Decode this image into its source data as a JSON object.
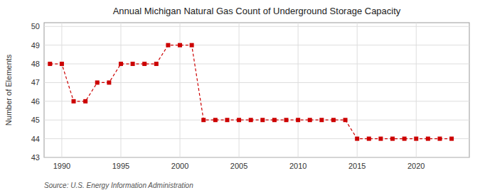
{
  "chart_data": {
    "type": "line",
    "title": "Annual Michigan Natural Gas Count of Underground Storage Capacity",
    "ylabel": "Number of Elements",
    "annotations": [
      "Source: U.S. Energy Information Administration"
    ],
    "x": [
      1989,
      1990,
      1991,
      1992,
      1993,
      1994,
      1995,
      1996,
      1997,
      1998,
      1999,
      2000,
      2001,
      2002,
      2003,
      2004,
      2005,
      2006,
      2007,
      2008,
      2009,
      2010,
      2011,
      2012,
      2013,
      2014,
      2015,
      2016,
      2017,
      2018,
      2019,
      2020,
      2021,
      2022,
      2023
    ],
    "values": [
      48,
      48,
      46,
      46,
      47,
      47,
      48,
      48,
      48,
      48,
      49,
      49,
      49,
      45,
      45,
      45,
      45,
      45,
      45,
      45,
      45,
      45,
      45,
      45,
      45,
      45,
      44,
      44,
      44,
      44,
      44,
      44,
      44,
      44,
      44
    ],
    "xlim": [
      1988.5,
      2024.5
    ],
    "ylim": [
      43,
      50.2
    ],
    "xticks": [
      1990,
      1995,
      2000,
      2005,
      2010,
      2015,
      2020
    ],
    "yticks": [
      43,
      44,
      45,
      46,
      47,
      48,
      49,
      50
    ],
    "grid": true,
    "color": "#cc0000",
    "marker": "square",
    "line_style": "dashed"
  }
}
